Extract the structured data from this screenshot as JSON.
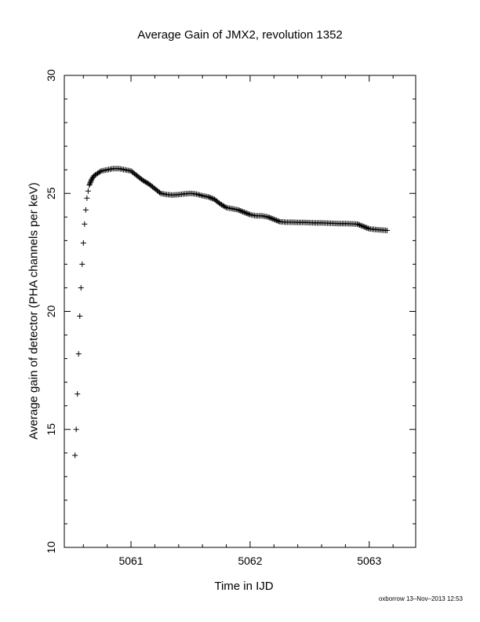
{
  "chart_data": {
    "type": "scatter",
    "title": "Average Gain of JMX2, revolution 1352",
    "xlabel": "Time in IJD",
    "ylabel": "Average gain of detector (PHA channels per keV)",
    "xlim": [
      5060.44,
      5063.39
    ],
    "ylim": [
      10,
      30
    ],
    "xticks": [
      5061,
      5062,
      5063
    ],
    "yticks": [
      10,
      15,
      20,
      25,
      30
    ],
    "marker": "+",
    "color": "#000000",
    "grid": false,
    "series": [
      {
        "x": [
          5060.53,
          5060.54,
          5060.55,
          5060.56,
          5060.57,
          5060.58,
          5060.59,
          5060.6,
          5060.61,
          5060.62,
          5060.63,
          5060.64,
          5060.65,
          5060.67,
          5060.69,
          5060.72,
          5060.75,
          5060.8,
          5060.85,
          5060.9,
          5060.95,
          5061.0,
          5061.05,
          5061.1,
          5061.15,
          5061.2,
          5061.25,
          5061.3,
          5061.35,
          5061.4,
          5061.45,
          5061.5,
          5061.55,
          5061.6,
          5061.65,
          5061.7,
          5061.75,
          5061.8,
          5061.85,
          5061.9,
          5061.95,
          5062.0,
          5062.05,
          5062.1,
          5062.15,
          5062.2,
          5062.25,
          5062.3,
          5062.35,
          5062.4,
          5062.45,
          5062.5,
          5062.55,
          5062.6,
          5062.65,
          5062.7,
          5062.75,
          5062.8,
          5062.85,
          5062.9,
          5062.95,
          5063.0,
          5063.05,
          5063.1,
          5063.15
        ],
        "y": [
          13.9,
          15.0,
          16.5,
          18.2,
          19.8,
          21.0,
          22.0,
          22.9,
          23.7,
          24.3,
          24.8,
          25.1,
          25.35,
          25.6,
          25.75,
          25.85,
          25.95,
          26.0,
          26.05,
          26.05,
          26.0,
          25.95,
          25.75,
          25.55,
          25.4,
          25.2,
          25.0,
          24.95,
          24.93,
          24.95,
          24.98,
          25.0,
          24.97,
          24.9,
          24.85,
          24.75,
          24.55,
          24.4,
          24.35,
          24.3,
          24.2,
          24.1,
          24.05,
          24.05,
          24.0,
          23.9,
          23.8,
          23.78,
          23.78,
          23.77,
          23.77,
          23.76,
          23.75,
          23.75,
          23.74,
          23.73,
          23.72,
          23.72,
          23.71,
          23.7,
          23.6,
          23.5,
          23.47,
          23.45,
          23.43
        ]
      }
    ]
  },
  "footer": "oxborrow 13–Nov–2013 12:53"
}
